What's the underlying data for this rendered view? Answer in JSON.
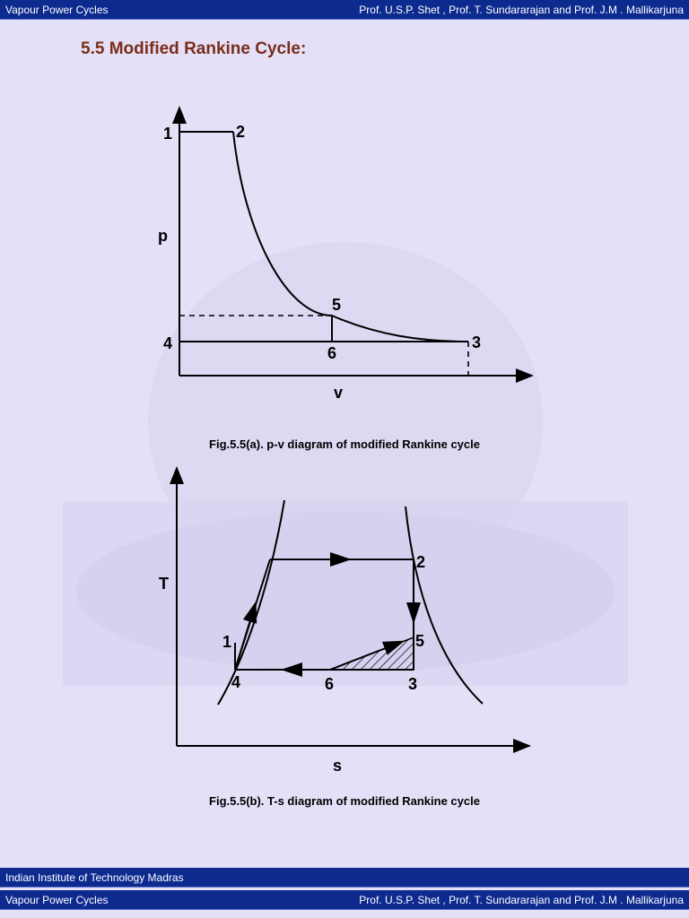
{
  "header": {
    "left": "Vapour Power Cycles",
    "right": "Prof. U.S.P. Shet , Prof. T. Sundararajan and Prof. J.M . Mallikarjuna"
  },
  "section_title": "5.5 Modified Rankine Cycle:",
  "pv_diagram": {
    "y_axis_label": "p",
    "x_axis_label": "v",
    "points": [
      "1",
      "2",
      "3",
      "4",
      "5",
      "6"
    ],
    "caption": "Fig.5.5(a). p-v diagram of modified Rankine cycle"
  },
  "ts_diagram": {
    "y_axis_label": "T",
    "x_axis_label": "s",
    "points": [
      "1",
      "2",
      "3",
      "4",
      "5",
      "6"
    ],
    "caption": "Fig.5.5(b). T-s diagram of modified Rankine cycle"
  },
  "footer": {
    "institute": "Indian Institute of Technology Madras",
    "left": "Vapour Power Cycles",
    "right": "Prof. U.S.P. Shet , Prof. T. Sundararajan and Prof. J.M . Mallikarjuna"
  },
  "colors": {
    "bar": "#0d2a8f",
    "background": "#e4e0f8",
    "title": "#7a2e1a"
  }
}
